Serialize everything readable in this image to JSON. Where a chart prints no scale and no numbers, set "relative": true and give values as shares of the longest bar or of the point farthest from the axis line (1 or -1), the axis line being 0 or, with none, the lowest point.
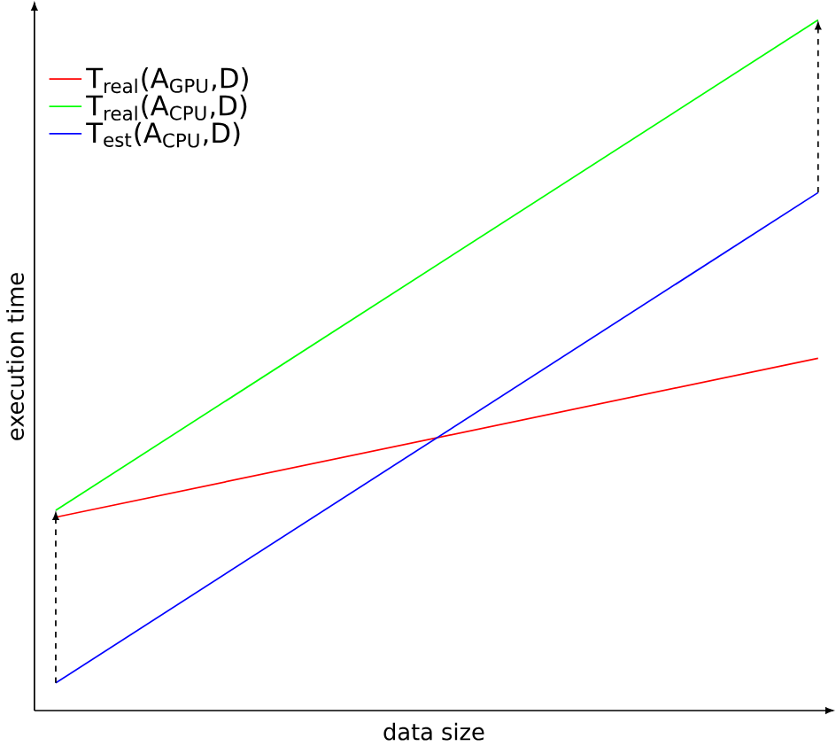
{
  "chart_data": {
    "type": "line",
    "relative": true,
    "xlabel": "data size",
    "ylabel": "execution time",
    "categories": [
      null,
      null
    ],
    "legend": "top left",
    "marker": "none",
    "line_style": "solid",
    "grid": false,
    "tick_labels": false,
    "series": [
      {
        "name": "T$_{real}$(A$_{GPU}$,D)",
        "color": "#ff0000",
        "values": [
          0.28,
          0.51
        ]
      },
      {
        "name": "T$_{real}$(A$_{CPU}$,D)",
        "color": "#00ff00",
        "values": [
          0.29,
          1.0
        ]
      },
      {
        "name": "T$_{est}$(A$_{CPU}$,D)",
        "color": "#0000ff",
        "values": [
          0.04,
          0.75
        ]
      }
    ]
  }
}
